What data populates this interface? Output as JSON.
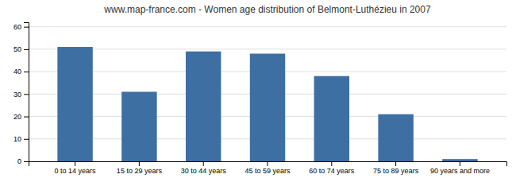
{
  "chart_data": {
    "type": "bar",
    "title": "www.map-france.com - Women age distribution of Belmont-Luthézieu in 2007",
    "categories": [
      "0 to 14 years",
      "15 to 29 years",
      "30 to 44 years",
      "45 to 59 years",
      "60 to 74 years",
      "75 to 89 years",
      "90 years and more"
    ],
    "values": [
      51,
      31,
      49,
      48,
      38,
      21,
      1
    ],
    "color": "#3d6fa3",
    "ylim": [
      0,
      62
    ],
    "yticks": [
      0,
      10,
      20,
      30,
      40,
      50,
      60
    ],
    "grid": true
  }
}
